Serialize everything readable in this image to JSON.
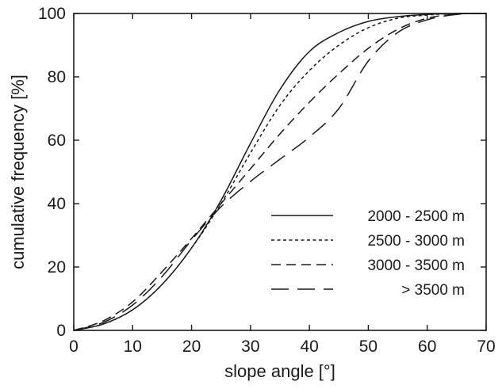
{
  "chart_data": {
    "type": "line",
    "xlabel": "slope angle [°]",
    "ylabel": "cumulative frequency [%]",
    "xlim": [
      0,
      70
    ],
    "ylim": [
      0,
      100
    ],
    "xticks": [
      0,
      10,
      20,
      30,
      40,
      50,
      60,
      70
    ],
    "yticks": [
      0,
      20,
      40,
      60,
      80,
      100
    ],
    "grid": false,
    "legend_position": "lower-right",
    "x": [
      0,
      5,
      10,
      15,
      20,
      25,
      30,
      35,
      40,
      45,
      50,
      55,
      60,
      65,
      70
    ],
    "series": [
      {
        "name": "2000 - 2500 m",
        "dash": "solid",
        "values": [
          0,
          2,
          6.5,
          14.5,
          26,
          41,
          59,
          76,
          88,
          94,
          97.5,
          99,
          99.7,
          100,
          100
        ]
      },
      {
        "name": "2500 - 3000 m",
        "dash": "dotted",
        "values": [
          0,
          2,
          6.5,
          14.5,
          26,
          40,
          56,
          71,
          82,
          90,
          95.5,
          98.5,
          99.5,
          100,
          100
        ]
      },
      {
        "name": "3000 - 3500 m",
        "dash": "dashed",
        "values": [
          0,
          3,
          9,
          18.5,
          29,
          40,
          51,
          62,
          72,
          81,
          89,
          95,
          98.5,
          99.8,
          100
        ]
      },
      {
        "name": "> 3500 m",
        "dash": "long-dashed",
        "values": [
          0,
          2.5,
          8,
          17,
          28.5,
          39,
          47,
          54,
          61,
          70,
          85,
          94,
          98,
          99.7,
          100
        ]
      }
    ]
  }
}
